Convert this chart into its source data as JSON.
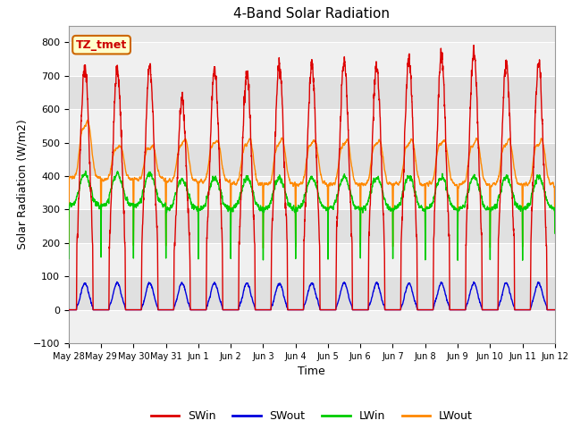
{
  "title": "4-Band Solar Radiation",
  "xlabel": "Time",
  "ylabel": "Solar Radiation (W/m2)",
  "ylim": [
    -100,
    850
  ],
  "yticks": [
    -100,
    0,
    100,
    200,
    300,
    400,
    500,
    600,
    700,
    800
  ],
  "annotation_text": "TZ_tmet",
  "annotation_color": "#cc0000",
  "annotation_bg": "#ffffcc",
  "annotation_edge": "#cc6600",
  "x_tick_labels": [
    "May 28",
    "May 29",
    "May 30",
    "May 31",
    "Jun 1",
    "Jun 2",
    "Jun 3",
    "Jun 4",
    "Jun 5",
    "Jun 6",
    "Jun 7",
    "Jun 8",
    "Jun 9",
    "Jun 10",
    "Jun 11",
    "Jun 12"
  ],
  "colors": {
    "SWin": "#dd0000",
    "SWout": "#0000dd",
    "LWin": "#00cc00",
    "LWout": "#ff8800"
  },
  "background_color": "#ffffff",
  "plot_bg_color": "#e8e8e8",
  "grid_color": "#ffffff",
  "num_days": 15,
  "points_per_day": 240,
  "legend_labels": [
    "SWin",
    "SWout",
    "LWin",
    "LWout"
  ]
}
